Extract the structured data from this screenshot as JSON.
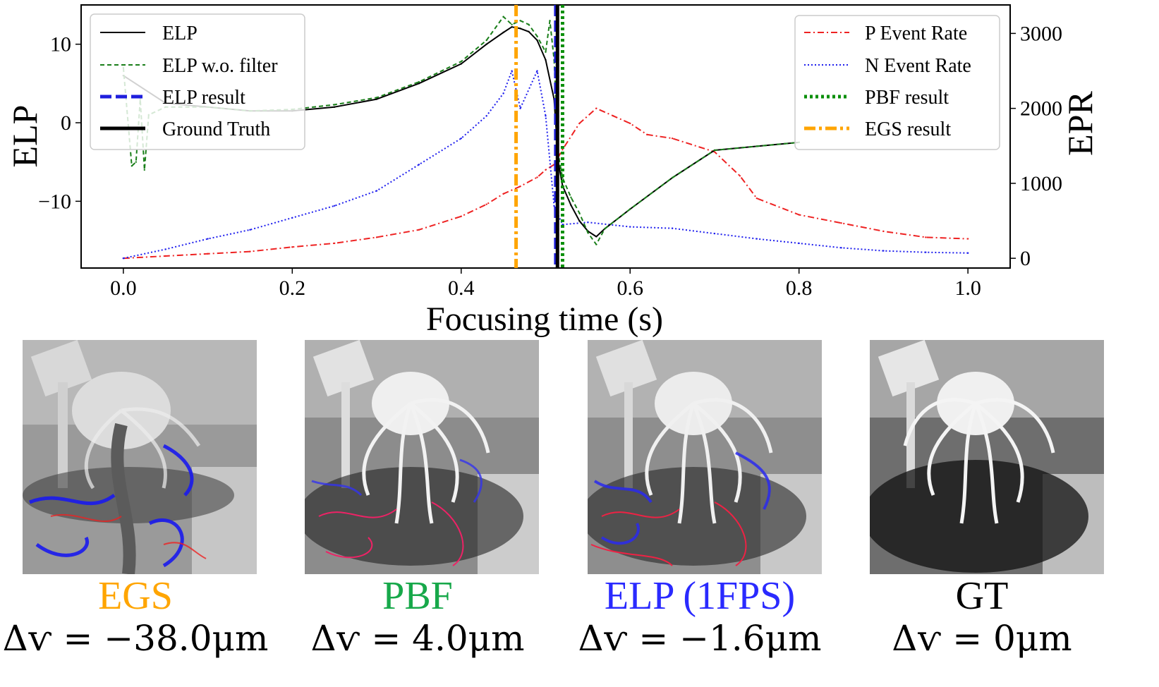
{
  "chart_data": {
    "type": "line",
    "xlabel": "Focusing time (s)",
    "ylabel_left": "ELP",
    "ylabel_right": "EPR",
    "xlim": [
      -0.05,
      1.05
    ],
    "ylim_left": [
      -18.5,
      15
    ],
    "ylim_right": [
      -130,
      3380
    ],
    "xticks": [
      "0.0",
      "0.2",
      "0.4",
      "0.6",
      "0.8",
      "1.0"
    ],
    "xtick_values": [
      0.0,
      0.2,
      0.4,
      0.6,
      0.8,
      1.0
    ],
    "yticks_left": [
      "10",
      "0",
      "−10"
    ],
    "ytick_values_left": [
      10,
      0,
      -10
    ],
    "yticks_right": [
      "3000",
      "2000",
      "1000",
      "0"
    ],
    "ytick_values_right": [
      3000,
      2000,
      1000,
      0
    ],
    "grid": false,
    "legend_left_position": "top-left",
    "legend_right_position": "top-right",
    "series": [
      {
        "name": "ELP",
        "axis": "left",
        "style": "solid",
        "color": "#000000",
        "x": [
          0.0,
          0.05,
          0.1,
          0.15,
          0.2,
          0.25,
          0.3,
          0.35,
          0.4,
          0.43,
          0.45,
          0.46,
          0.47,
          0.48,
          0.49,
          0.5,
          0.51,
          0.515,
          0.52,
          0.53,
          0.54,
          0.55,
          0.56,
          0.57,
          0.6,
          0.65,
          0.7,
          0.75,
          0.8
        ],
        "y": [
          6.0,
          2.5,
          2.0,
          1.5,
          1.5,
          2.0,
          3.0,
          5.0,
          7.5,
          10.0,
          11.5,
          12.2,
          12.0,
          11.6,
          10.5,
          8.0,
          3.0,
          -5.0,
          -8.0,
          -10.5,
          -12.5,
          -13.8,
          -14.5,
          -13.5,
          -11.0,
          -7.0,
          -3.5,
          -3.0,
          -2.5
        ]
      },
      {
        "name": "ELP w.o. filter",
        "axis": "left",
        "style": "dashed",
        "color": "#1a7f1a",
        "x": [
          0.0,
          0.01,
          0.015,
          0.02,
          0.025,
          0.03,
          0.05,
          0.1,
          0.15,
          0.2,
          0.25,
          0.3,
          0.35,
          0.4,
          0.43,
          0.45,
          0.46,
          0.47,
          0.48,
          0.49,
          0.5,
          0.505,
          0.51,
          0.515,
          0.52,
          0.53,
          0.54,
          0.55,
          0.56,
          0.57,
          0.6,
          0.65,
          0.7,
          0.75,
          0.8
        ],
        "y": [
          7.0,
          -5.5,
          -5.0,
          3.0,
          -6.0,
          1.0,
          2.0,
          2.0,
          1.5,
          1.7,
          2.3,
          3.2,
          5.2,
          7.8,
          10.5,
          13.5,
          12.5,
          13.0,
          12.5,
          11.0,
          9.0,
          13.0,
          8.0,
          -4.0,
          -7.0,
          -9.5,
          -11.5,
          -14.0,
          -15.5,
          -13.5,
          -11.0,
          -7.0,
          -3.5,
          -3.0,
          -2.5
        ]
      },
      {
        "name": "ELP result",
        "axis": "left",
        "style": "vline-dashed",
        "color": "#1f1fdd",
        "x_value": 0.512
      },
      {
        "name": "Ground Truth",
        "axis": "left",
        "style": "vline-solid",
        "color": "#000000",
        "x_value": 0.514
      },
      {
        "name": "P Event Rate",
        "axis": "right",
        "style": "dashdot",
        "color": "#ee2222",
        "x": [
          0.0,
          0.05,
          0.1,
          0.15,
          0.2,
          0.25,
          0.3,
          0.35,
          0.4,
          0.43,
          0.45,
          0.47,
          0.49,
          0.5,
          0.51,
          0.52,
          0.54,
          0.56,
          0.58,
          0.6,
          0.62,
          0.65,
          0.7,
          0.73,
          0.75,
          0.8,
          0.85,
          0.9,
          0.95,
          1.0
        ],
        "y": [
          0,
          30,
          60,
          90,
          150,
          200,
          280,
          380,
          560,
          720,
          860,
          960,
          1080,
          1180,
          1250,
          1450,
          1800,
          2000,
          1900,
          1800,
          1650,
          1600,
          1420,
          1100,
          800,
          580,
          470,
          360,
          280,
          260
        ]
      },
      {
        "name": "N Event Rate",
        "axis": "right",
        "style": "dotted",
        "color": "#1f1fee",
        "x": [
          0.0,
          0.05,
          0.1,
          0.15,
          0.2,
          0.25,
          0.3,
          0.35,
          0.4,
          0.43,
          0.45,
          0.46,
          0.47,
          0.49,
          0.5,
          0.51,
          0.52,
          0.55,
          0.6,
          0.65,
          0.7,
          0.75,
          0.8,
          0.85,
          0.9,
          0.95,
          1.0
        ],
        "y": [
          0,
          120,
          260,
          380,
          540,
          700,
          900,
          1250,
          1600,
          1900,
          2200,
          2500,
          2000,
          2500,
          1900,
          700,
          450,
          480,
          420,
          400,
          330,
          260,
          200,
          140,
          100,
          80,
          70
        ]
      },
      {
        "name": "PBF result",
        "axis": "right",
        "style": "vline-dotted",
        "color": "#0a8f0a",
        "x_value": 0.52
      },
      {
        "name": "EGS result",
        "axis": "right",
        "style": "vline-dashdot",
        "color": "#ffa500",
        "x_value": 0.465
      }
    ]
  },
  "colors": {
    "egs": "#ffa500",
    "pbf": "#17a84a",
    "elp": "#2a2aff",
    "gt": "#000000"
  },
  "panels": [
    {
      "method": "EGS",
      "delta": "Δѵ = −38.0μm"
    },
    {
      "method": "PBF",
      "delta": "Δѵ = 4.0μm"
    },
    {
      "method": "ELP (1FPS)",
      "delta": "Δѵ = −1.6μm"
    },
    {
      "method": "GT",
      "delta": "Δѵ = 0μm"
    }
  ]
}
